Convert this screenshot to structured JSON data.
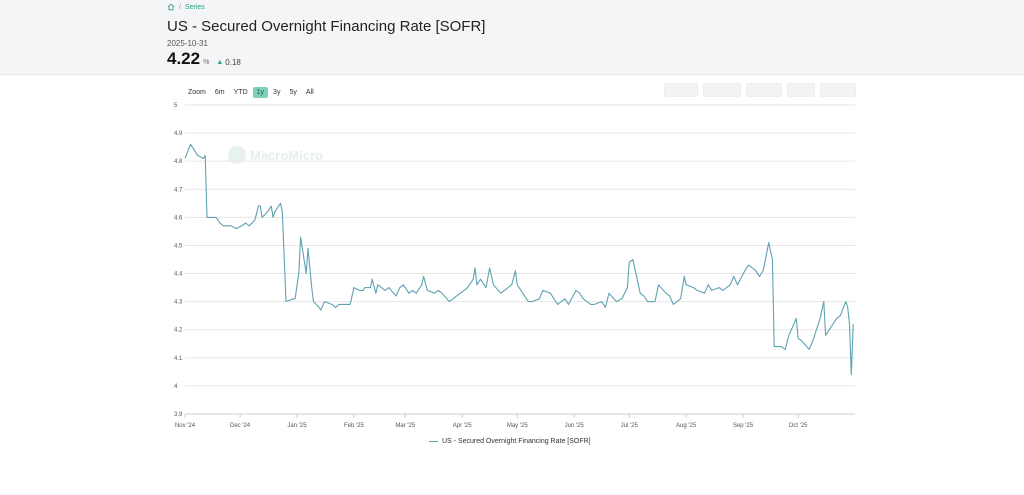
{
  "breadcrumb": {
    "section": "Series",
    "separator": "/"
  },
  "page": {
    "title": "US - Secured Overnight Financing Rate [SOFR]",
    "date": "2025-10-31",
    "value": "4.22",
    "unit": "%",
    "change": "0.18",
    "change_direction": "up"
  },
  "zoom": {
    "label": "Zoom",
    "options": [
      "6m",
      "YTD",
      "1y",
      "3y",
      "5y",
      "All"
    ],
    "active": "1y"
  },
  "watermark": "MacroMicro",
  "colors": {
    "line": "#5fa2b1",
    "accent": "#2f9c84",
    "active_zoom": "#7fd0b8"
  },
  "chart_data": {
    "type": "line",
    "title": "",
    "xlabel": "",
    "ylabel": "",
    "ylim": [
      3.9,
      5
    ],
    "y_ticks": [
      "3.9",
      "4",
      "4.1",
      "4.2",
      "4.3",
      "4.4",
      "4.5",
      "4.6",
      "4.7",
      "4.8",
      "4.9",
      "5"
    ],
    "x_ticks": [
      {
        "label": "Nov '24",
        "date": "2024-11-01"
      },
      {
        "label": "Dec '24",
        "date": "2024-12-01"
      },
      {
        "label": "Jan '25",
        "date": "2025-01-01"
      },
      {
        "label": "Feb '25",
        "date": "2025-02-01"
      },
      {
        "label": "Mar '25",
        "date": "2025-03-01"
      },
      {
        "label": "Apr '25",
        "date": "2025-04-01"
      },
      {
        "label": "May '25",
        "date": "2025-05-01"
      },
      {
        "label": "Jun '25",
        "date": "2025-06-01"
      },
      {
        "label": "Jul '25",
        "date": "2025-07-01"
      },
      {
        "label": "Aug '25",
        "date": "2025-08-01"
      },
      {
        "label": "Sep '25",
        "date": "2025-09-01"
      },
      {
        "label": "Oct '25",
        "date": "2025-10-01"
      }
    ],
    "grid": true,
    "legend_position": "bottom-center",
    "series": [
      {
        "name": "US - Secured Overnight Financing Rate [SOFR]",
        "points": [
          [
            "2024-11-01",
            4.81
          ],
          [
            "2024-11-04",
            4.86
          ],
          [
            "2024-11-06",
            4.84
          ],
          [
            "2024-11-07",
            4.83
          ],
          [
            "2024-11-08",
            4.82
          ],
          [
            "2024-11-11",
            4.81
          ],
          [
            "2024-11-12",
            4.82
          ],
          [
            "2024-11-13",
            4.6
          ],
          [
            "2024-11-15",
            4.6
          ],
          [
            "2024-11-18",
            4.6
          ],
          [
            "2024-11-20",
            4.58
          ],
          [
            "2024-11-22",
            4.57
          ],
          [
            "2024-11-26",
            4.57
          ],
          [
            "2024-11-29",
            4.56
          ],
          [
            "2024-12-02",
            4.57
          ],
          [
            "2024-12-04",
            4.58
          ],
          [
            "2024-12-06",
            4.57
          ],
          [
            "2024-12-09",
            4.59
          ],
          [
            "2024-12-11",
            4.64
          ],
          [
            "2024-12-12",
            4.64
          ],
          [
            "2024-12-13",
            4.6
          ],
          [
            "2024-12-16",
            4.62
          ],
          [
            "2024-12-18",
            4.64
          ],
          [
            "2024-12-19",
            4.6
          ],
          [
            "2024-12-20",
            4.62
          ],
          [
            "2024-12-23",
            4.65
          ],
          [
            "2024-12-24",
            4.62
          ],
          [
            "2024-12-26",
            4.3
          ],
          [
            "2024-12-30",
            4.31
          ],
          [
            "2024-12-31",
            4.31
          ],
          [
            "2025-01-02",
            4.4
          ],
          [
            "2025-01-03",
            4.53
          ],
          [
            "2025-01-06",
            4.4
          ],
          [
            "2025-01-07",
            4.49
          ],
          [
            "2025-01-09",
            4.35
          ],
          [
            "2025-01-10",
            4.3
          ],
          [
            "2025-01-13",
            4.28
          ],
          [
            "2025-01-14",
            4.27
          ],
          [
            "2025-01-16",
            4.3
          ],
          [
            "2025-01-20",
            4.29
          ],
          [
            "2025-01-22",
            4.28
          ],
          [
            "2025-01-24",
            4.29
          ],
          [
            "2025-01-28",
            4.29
          ],
          [
            "2025-01-30",
            4.29
          ],
          [
            "2025-02-01",
            4.35
          ],
          [
            "2025-02-04",
            4.34
          ],
          [
            "2025-02-06",
            4.34
          ],
          [
            "2025-02-07",
            4.35
          ],
          [
            "2025-02-10",
            4.35
          ],
          [
            "2025-02-11",
            4.38
          ],
          [
            "2025-02-13",
            4.33
          ],
          [
            "2025-02-14",
            4.36
          ],
          [
            "2025-02-18",
            4.34
          ],
          [
            "2025-02-20",
            4.35
          ],
          [
            "2025-02-24",
            4.32
          ],
          [
            "2025-02-26",
            4.35
          ],
          [
            "2025-02-28",
            4.36
          ],
          [
            "2025-03-03",
            4.33
          ],
          [
            "2025-03-05",
            4.34
          ],
          [
            "2025-03-07",
            4.33
          ],
          [
            "2025-03-10",
            4.36
          ],
          [
            "2025-03-11",
            4.39
          ],
          [
            "2025-03-13",
            4.34
          ],
          [
            "2025-03-17",
            4.33
          ],
          [
            "2025-03-19",
            4.34
          ],
          [
            "2025-03-21",
            4.33
          ],
          [
            "2025-03-25",
            4.3
          ],
          [
            "2025-03-27",
            4.31
          ],
          [
            "2025-03-31",
            4.33
          ],
          [
            "2025-04-02",
            4.34
          ],
          [
            "2025-04-04",
            4.35
          ],
          [
            "2025-04-07",
            4.38
          ],
          [
            "2025-04-08",
            4.42
          ],
          [
            "2025-04-09",
            4.36
          ],
          [
            "2025-04-11",
            4.38
          ],
          [
            "2025-04-14",
            4.35
          ],
          [
            "2025-04-16",
            4.42
          ],
          [
            "2025-04-18",
            4.36
          ],
          [
            "2025-04-22",
            4.33
          ],
          [
            "2025-04-24",
            4.34
          ],
          [
            "2025-04-28",
            4.36
          ],
          [
            "2025-04-30",
            4.41
          ],
          [
            "2025-05-01",
            4.36
          ],
          [
            "2025-05-05",
            4.32
          ],
          [
            "2025-05-07",
            4.3
          ],
          [
            "2025-05-09",
            4.3
          ],
          [
            "2025-05-13",
            4.31
          ],
          [
            "2025-05-15",
            4.34
          ],
          [
            "2025-05-19",
            4.33
          ],
          [
            "2025-05-21",
            4.31
          ],
          [
            "2025-05-23",
            4.29
          ],
          [
            "2025-05-27",
            4.31
          ],
          [
            "2025-05-29",
            4.29
          ],
          [
            "2025-06-02",
            4.34
          ],
          [
            "2025-06-04",
            4.33
          ],
          [
            "2025-06-06",
            4.31
          ],
          [
            "2025-06-10",
            4.29
          ],
          [
            "2025-06-12",
            4.29
          ],
          [
            "2025-06-16",
            4.3
          ],
          [
            "2025-06-18",
            4.28
          ],
          [
            "2025-06-20",
            4.33
          ],
          [
            "2025-06-24",
            4.3
          ],
          [
            "2025-06-27",
            4.31
          ],
          [
            "2025-06-30",
            4.35
          ],
          [
            "2025-07-01",
            4.44
          ],
          [
            "2025-07-03",
            4.45
          ],
          [
            "2025-07-07",
            4.33
          ],
          [
            "2025-07-09",
            4.32
          ],
          [
            "2025-07-11",
            4.3
          ],
          [
            "2025-07-15",
            4.3
          ],
          [
            "2025-07-17",
            4.36
          ],
          [
            "2025-07-21",
            4.33
          ],
          [
            "2025-07-23",
            4.32
          ],
          [
            "2025-07-25",
            4.29
          ],
          [
            "2025-07-29",
            4.31
          ],
          [
            "2025-07-31",
            4.39
          ],
          [
            "2025-08-01",
            4.36
          ],
          [
            "2025-08-05",
            4.35
          ],
          [
            "2025-08-07",
            4.34
          ],
          [
            "2025-08-11",
            4.33
          ],
          [
            "2025-08-13",
            4.36
          ],
          [
            "2025-08-15",
            4.34
          ],
          [
            "2025-08-19",
            4.35
          ],
          [
            "2025-08-21",
            4.34
          ],
          [
            "2025-08-25",
            4.36
          ],
          [
            "2025-08-27",
            4.39
          ],
          [
            "2025-08-29",
            4.36
          ],
          [
            "2025-09-02",
            4.41
          ],
          [
            "2025-09-04",
            4.43
          ],
          [
            "2025-09-08",
            4.41
          ],
          [
            "2025-09-10",
            4.39
          ],
          [
            "2025-09-12",
            4.41
          ],
          [
            "2025-09-15",
            4.51
          ],
          [
            "2025-09-17",
            4.45
          ],
          [
            "2025-09-18",
            4.14
          ],
          [
            "2025-09-22",
            4.14
          ],
          [
            "2025-09-24",
            4.13
          ],
          [
            "2025-09-26",
            4.18
          ],
          [
            "2025-09-30",
            4.24
          ],
          [
            "2025-10-01",
            4.17
          ],
          [
            "2025-10-03",
            4.16
          ],
          [
            "2025-10-07",
            4.13
          ],
          [
            "2025-10-09",
            4.16
          ],
          [
            "2025-10-13",
            4.24
          ],
          [
            "2025-10-15",
            4.3
          ],
          [
            "2025-10-16",
            4.18
          ],
          [
            "2025-10-20",
            4.22
          ],
          [
            "2025-10-22",
            4.24
          ],
          [
            "2025-10-24",
            4.25
          ],
          [
            "2025-10-27",
            4.3
          ],
          [
            "2025-10-28",
            4.28
          ],
          [
            "2025-10-29",
            4.22
          ],
          [
            "2025-10-30",
            4.04
          ],
          [
            "2025-10-31",
            4.22
          ]
        ]
      }
    ]
  }
}
